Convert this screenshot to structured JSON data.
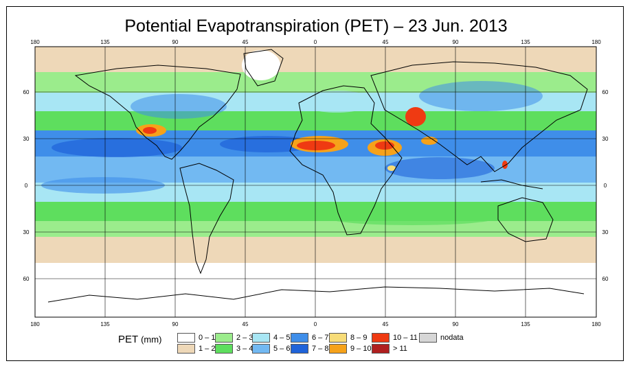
{
  "title": "Potential Evapotranspiration (PET) – 23 Jun. 2013",
  "lon_ticks": [
    "180",
    "135",
    "90",
    "45",
    "0",
    "45",
    "90",
    "135",
    "180"
  ],
  "lat_ticks": [
    "60",
    "30",
    "0",
    "30",
    "60"
  ],
  "legend": {
    "title": "PET",
    "unit": "(mm)",
    "items": [
      {
        "label": "0 – 1",
        "color": "#ffffff"
      },
      {
        "label": "1 – 2",
        "color": "#eed8b8"
      },
      {
        "label": "2 – 3",
        "color": "#9bec8c"
      },
      {
        "label": "3 – 4",
        "color": "#5ede5e"
      },
      {
        "label": "4 – 5",
        "color": "#a8e6f4"
      },
      {
        "label": "5 – 6",
        "color": "#72b9f2"
      },
      {
        "label": "6 – 7",
        "color": "#3f8ee9"
      },
      {
        "label": "7 – 8",
        "color": "#1f63d9"
      },
      {
        "label": "8 – 9",
        "color": "#f7dc78"
      },
      {
        "label": "9 – 10",
        "color": "#f6a21a"
      },
      {
        "label": "10 – 11",
        "color": "#ef3a12"
      },
      {
        "label": "> 11",
        "color": "#b01f1f"
      },
      {
        "label": "nodata",
        "color": "#d6d6d6"
      }
    ]
  }
}
